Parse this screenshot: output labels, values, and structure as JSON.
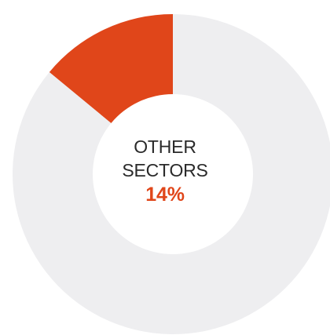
{
  "chart_data": {
    "type": "pie",
    "categories": [
      "OTHER SECTORS",
      ""
    ],
    "values": [
      14,
      86
    ],
    "colors": [
      "#E0461A",
      "#EEEEF0"
    ],
    "donut": true,
    "start_angle": "top, counterclockwise",
    "center_label": {
      "line1": "OTHER",
      "line2": "SECTORS",
      "percent": "14%"
    }
  },
  "colors": {
    "accent": "#E0461A",
    "track": "#EEEEF0",
    "text": "#2A2A2A"
  }
}
